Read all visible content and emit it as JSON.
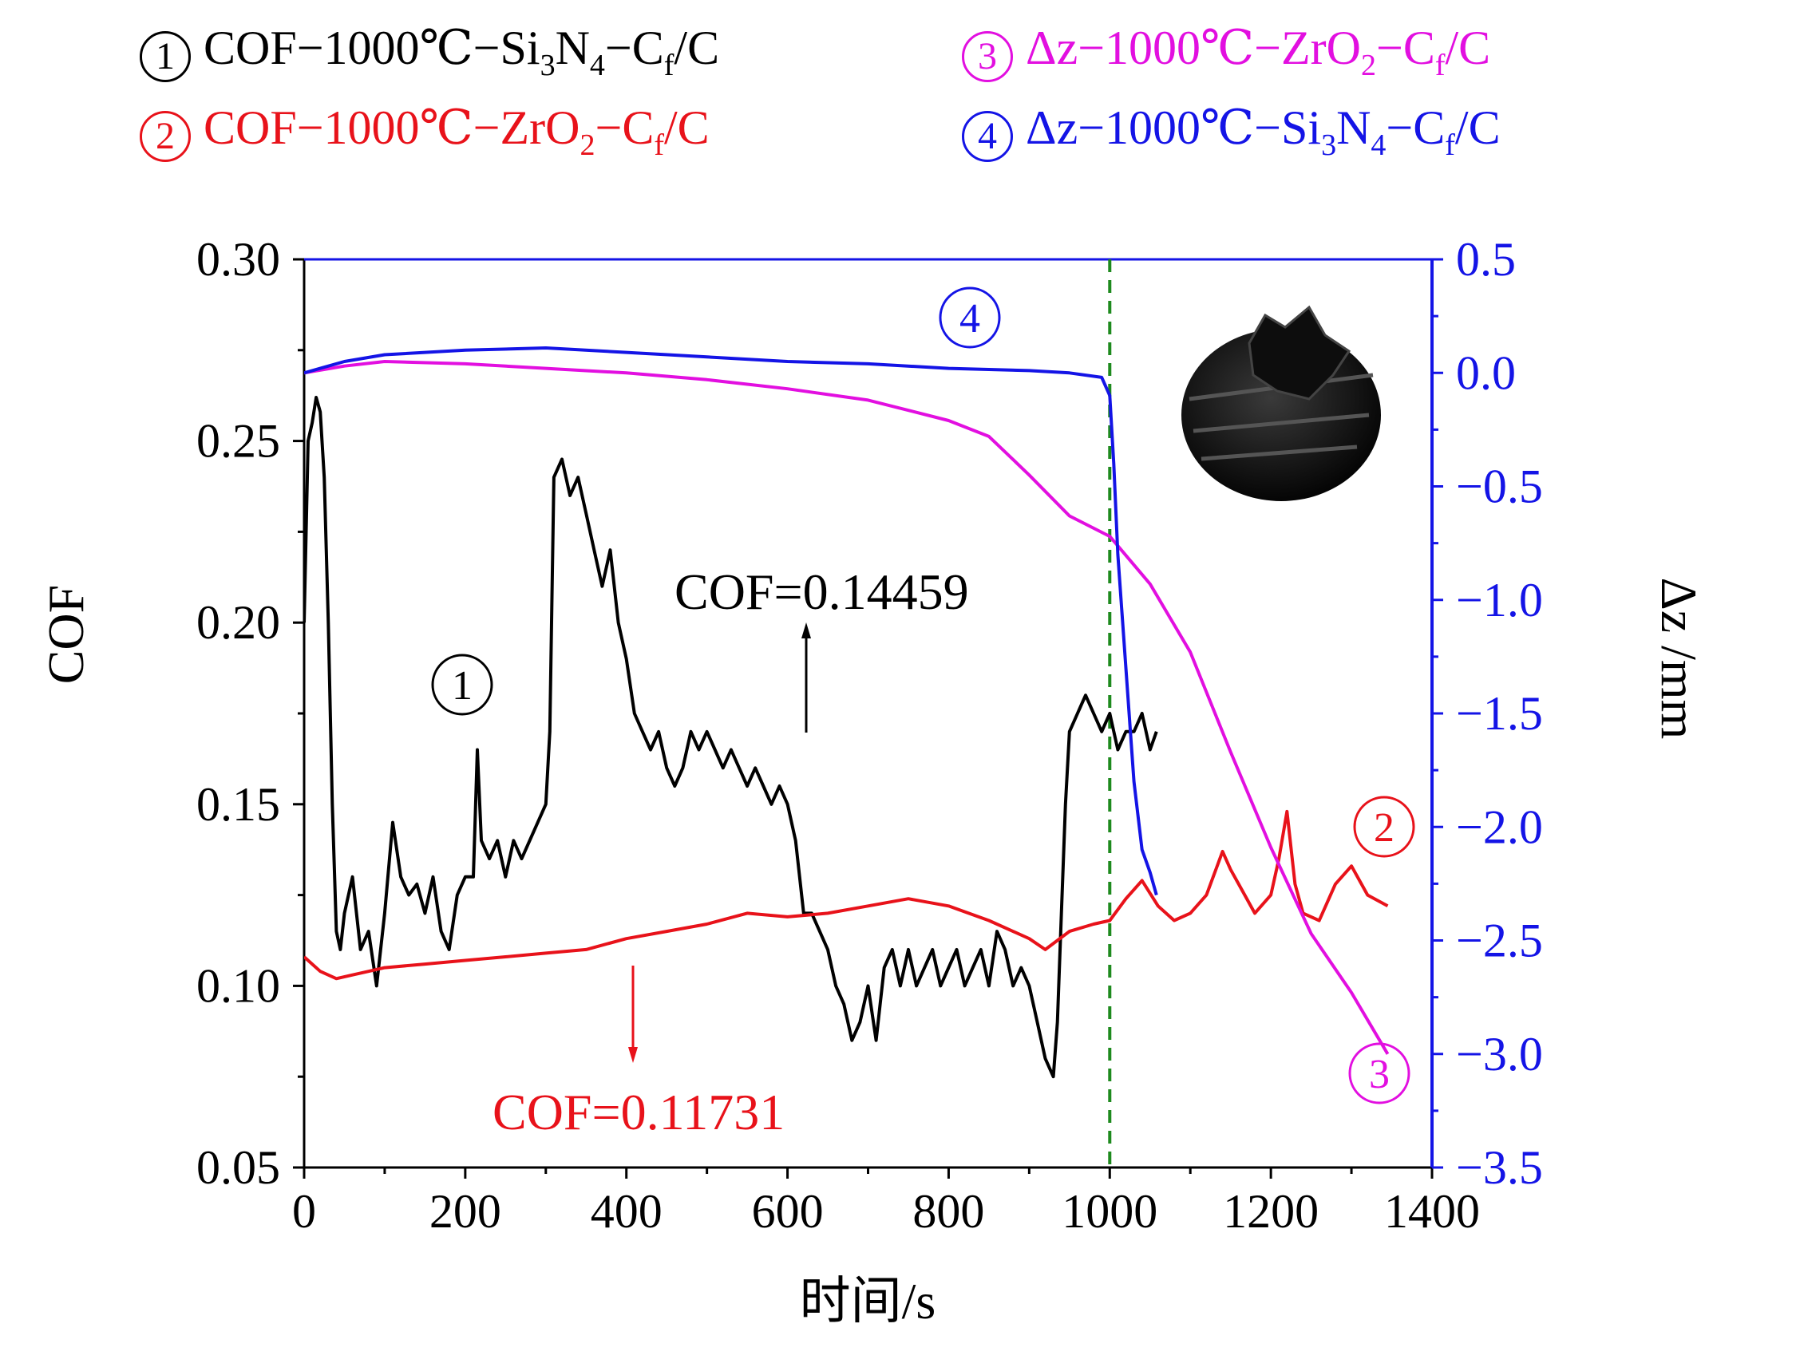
{
  "legend": [
    {
      "num": "1",
      "parts": [
        "COF−1000℃−Si",
        "3",
        "N",
        "4",
        "−C",
        "f",
        "/C"
      ],
      "color": "#000000"
    },
    {
      "num": "2",
      "parts": [
        "COF−1000℃−ZrO",
        "2",
        "−C",
        "f",
        "/C",
        "",
        ""
      ],
      "color": "#e8121a"
    },
    {
      "num": "3",
      "parts": [
        "Δz−1000℃−ZrO",
        "2",
        "−C",
        "f",
        "/C",
        "",
        ""
      ],
      "color": "#e20fe0"
    },
    {
      "num": "4",
      "parts": [
        "Δz−1000℃−Si",
        "3",
        "N",
        "4",
        "−C",
        "f",
        "/C"
      ],
      "color": "#1414e6"
    }
  ],
  "axes": {
    "xlabel": "时间/s",
    "ylabel_left": "COF",
    "ylabel_right": "Δz /mm",
    "xticks": [
      "0",
      "200",
      "400",
      "600",
      "800",
      "1000",
      "1200",
      "1400"
    ],
    "yticks_left": [
      "0.05",
      "0.10",
      "0.15",
      "0.20",
      "0.25",
      "0.30"
    ],
    "yticks_right": [
      "−3.5",
      "−3.0",
      "−2.5",
      "−2.0",
      "−1.5",
      "−1.0",
      "−0.5",
      "0.0",
      "0.5"
    ]
  },
  "annotations": {
    "cof_black": "COF=0.14459",
    "cof_red": "COF=0.11731",
    "label1": "1",
    "label2": "2",
    "label3": "3",
    "label4": "4"
  },
  "chart_data": {
    "type": "line",
    "xlim": [
      0,
      1400
    ],
    "ylim_left": [
      0.05,
      0.3
    ],
    "ylim_right": [
      -3.5,
      0.5
    ],
    "x_range_marker": 1000,
    "series": [
      {
        "name": "COF−1000℃−Si3N4−Cf/C",
        "axis": "left",
        "color": "#000000",
        "x": [
          0,
          5,
          10,
          15,
          20,
          25,
          30,
          35,
          40,
          45,
          50,
          60,
          70,
          80,
          90,
          100,
          110,
          120,
          130,
          140,
          150,
          160,
          170,
          180,
          190,
          200,
          210,
          215,
          220,
          230,
          240,
          250,
          260,
          270,
          280,
          290,
          300,
          305,
          310,
          320,
          330,
          340,
          350,
          360,
          370,
          380,
          390,
          400,
          410,
          420,
          430,
          440,
          450,
          460,
          470,
          480,
          490,
          500,
          510,
          520,
          530,
          540,
          550,
          560,
          570,
          580,
          590,
          600,
          610,
          620,
          630,
          640,
          650,
          660,
          670,
          680,
          690,
          700,
          710,
          720,
          730,
          740,
          750,
          760,
          770,
          780,
          790,
          800,
          810,
          820,
          830,
          840,
          850,
          860,
          870,
          880,
          890,
          900,
          910,
          920,
          930,
          935,
          940,
          945,
          950,
          960,
          970,
          980,
          990,
          1000,
          1010,
          1020,
          1030,
          1040,
          1050,
          1058
        ],
        "y": [
          0.2,
          0.25,
          0.255,
          0.262,
          0.258,
          0.24,
          0.2,
          0.15,
          0.115,
          0.11,
          0.12,
          0.13,
          0.11,
          0.115,
          0.1,
          0.12,
          0.145,
          0.13,
          0.125,
          0.128,
          0.12,
          0.13,
          0.115,
          0.11,
          0.125,
          0.13,
          0.13,
          0.165,
          0.14,
          0.135,
          0.14,
          0.13,
          0.14,
          0.135,
          0.14,
          0.145,
          0.15,
          0.17,
          0.24,
          0.245,
          0.235,
          0.24,
          0.23,
          0.22,
          0.21,
          0.22,
          0.2,
          0.19,
          0.175,
          0.17,
          0.165,
          0.17,
          0.16,
          0.155,
          0.16,
          0.17,
          0.165,
          0.17,
          0.165,
          0.16,
          0.165,
          0.16,
          0.155,
          0.16,
          0.155,
          0.15,
          0.155,
          0.15,
          0.14,
          0.12,
          0.12,
          0.115,
          0.11,
          0.1,
          0.095,
          0.085,
          0.09,
          0.1,
          0.085,
          0.105,
          0.11,
          0.1,
          0.11,
          0.1,
          0.105,
          0.11,
          0.1,
          0.105,
          0.11,
          0.1,
          0.105,
          0.11,
          0.1,
          0.115,
          0.11,
          0.1,
          0.105,
          0.1,
          0.09,
          0.08,
          0.075,
          0.09,
          0.12,
          0.15,
          0.17,
          0.175,
          0.18,
          0.175,
          0.17,
          0.175,
          0.165,
          0.17,
          0.17,
          0.175,
          0.165,
          0.17
        ]
      },
      {
        "name": "COF−1000℃−ZrO2−Cf/C",
        "axis": "left",
        "color": "#e8121a",
        "x": [
          0,
          10,
          20,
          40,
          60,
          80,
          100,
          150,
          200,
          250,
          300,
          350,
          400,
          450,
          500,
          550,
          600,
          650,
          700,
          750,
          800,
          850,
          900,
          920,
          950,
          980,
          1000,
          1020,
          1040,
          1060,
          1080,
          1100,
          1120,
          1140,
          1150,
          1160,
          1180,
          1200,
          1210,
          1220,
          1230,
          1240,
          1260,
          1280,
          1300,
          1320,
          1345
        ],
        "y": [
          0.108,
          0.106,
          0.104,
          0.102,
          0.103,
          0.104,
          0.105,
          0.106,
          0.107,
          0.108,
          0.109,
          0.11,
          0.113,
          0.115,
          0.117,
          0.12,
          0.119,
          0.12,
          0.122,
          0.124,
          0.122,
          0.118,
          0.113,
          0.11,
          0.115,
          0.117,
          0.118,
          0.124,
          0.129,
          0.122,
          0.118,
          0.12,
          0.125,
          0.137,
          0.132,
          0.128,
          0.12,
          0.125,
          0.135,
          0.148,
          0.128,
          0.12,
          0.118,
          0.128,
          0.133,
          0.125,
          0.122
        ]
      },
      {
        "name": "Δz−1000℃−ZrO2−Cf/C",
        "axis": "right",
        "color": "#e20fe0",
        "x": [
          0,
          50,
          100,
          200,
          300,
          400,
          500,
          600,
          700,
          800,
          850,
          900,
          950,
          1000,
          1050,
          1100,
          1150,
          1200,
          1250,
          1300,
          1345
        ],
        "y": [
          0.0,
          0.03,
          0.05,
          0.04,
          0.02,
          0.0,
          -0.03,
          -0.07,
          -0.12,
          -0.21,
          -0.28,
          -0.45,
          -0.63,
          -0.72,
          -0.93,
          -1.23,
          -1.67,
          -2.09,
          -2.47,
          -2.73,
          -3.0
        ]
      },
      {
        "name": "Δz−1000℃−Si3N4−Cf/C",
        "axis": "right",
        "color": "#1414e6",
        "x": [
          0,
          20,
          50,
          100,
          200,
          300,
          400,
          500,
          600,
          700,
          800,
          900,
          950,
          990,
          1000,
          1005,
          1010,
          1020,
          1030,
          1040,
          1050,
          1058
        ],
        "y": [
          0.0,
          0.02,
          0.05,
          0.08,
          0.1,
          0.11,
          0.09,
          0.07,
          0.05,
          0.04,
          0.02,
          0.01,
          0.0,
          -0.02,
          -0.1,
          -0.4,
          -0.8,
          -1.3,
          -1.8,
          -2.1,
          -2.2,
          -2.3
        ]
      }
    ]
  }
}
